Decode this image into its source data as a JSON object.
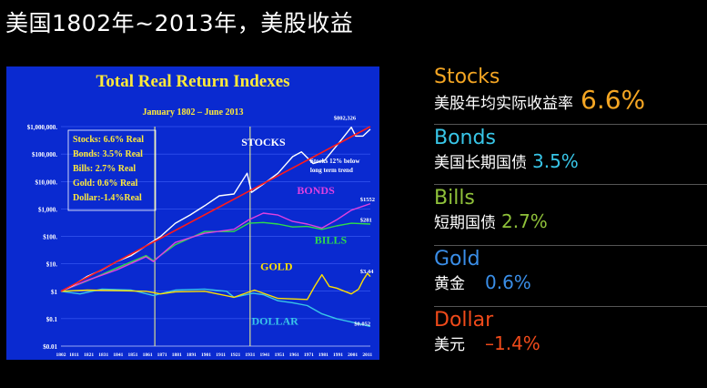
{
  "page": {
    "heading": "美国1802年~2013年，美股收益"
  },
  "legend": [
    {
      "name": "Stocks",
      "desc": "美股年均实际收益率",
      "value": "6.6%",
      "color": "#f5a623"
    },
    {
      "name": "Bonds",
      "desc": "美国长期国债",
      "value": "3.5%",
      "color": "#38c6e8"
    },
    {
      "name": "Bills",
      "desc": "短期国债",
      "value": "2.7%",
      "color": "#8fc13a"
    },
    {
      "name": "Gold",
      "desc": "黄金",
      "value": "0.6%",
      "color": "#3a8ee8"
    },
    {
      "name": "Dollar",
      "desc": "美元",
      "value": "–1.4%",
      "color": "#f04a1a"
    }
  ],
  "chart_data": {
    "type": "line",
    "title": "Total Real Return Indexes",
    "subtitle": "January 1802 – June 2013",
    "yscale": "log",
    "ylim": [
      0.01,
      1000000
    ],
    "ytick_labels": [
      "$1,000,000.",
      "$100,000.",
      "$10,000.",
      "$1,000.",
      "$100.",
      "$10.",
      "$1",
      "$0.1",
      "$0.01"
    ],
    "xtick_labels": [
      "1802",
      "1811",
      "1821",
      "1831",
      "1841",
      "1851",
      "1861",
      "1871",
      "1881",
      "1891",
      "1901",
      "1911",
      "1921",
      "1931",
      "1941",
      "1951",
      "1961",
      "1971",
      "1981",
      "1991",
      "2001",
      "2011"
    ],
    "stats_box": [
      "Stocks: 6.6% Real",
      "Bonds: 3.5% Real",
      "Bills:   2.7% Real",
      "Gold:   0.6% Real",
      "Dollar:-1.4%Real"
    ],
    "trend_note": [
      "Stocks 12% below",
      "long term trend"
    ],
    "series": [
      {
        "name": "STOCKS",
        "color": "#ffffff",
        "end_label": "$802,326",
        "x": [
          1802,
          1810,
          1820,
          1830,
          1840,
          1850,
          1860,
          1870,
          1880,
          1890,
          1900,
          1910,
          1920,
          1929,
          1932,
          1940,
          1950,
          1960,
          1966,
          1974,
          1982,
          1990,
          2000,
          2003,
          2008,
          2013
        ],
        "y": [
          1,
          1.6,
          3.5,
          6,
          12,
          20,
          45,
          100,
          300,
          600,
          1300,
          3000,
          3500,
          20000,
          4000,
          8000,
          20000,
          80000,
          120000,
          45000,
          60000,
          200000,
          950000,
          450000,
          450000,
          802326
        ]
      },
      {
        "name": "BONDS",
        "color": "#e040e0",
        "end_label": "$1552",
        "x": [
          1802,
          1820,
          1840,
          1860,
          1865,
          1880,
          1900,
          1920,
          1930,
          1940,
          1950,
          1960,
          1970,
          1980,
          1990,
          2000,
          2013
        ],
        "y": [
          1,
          2.5,
          6,
          18,
          12,
          60,
          130,
          180,
          400,
          700,
          600,
          350,
          280,
          200,
          400,
          900,
          1552
        ]
      },
      {
        "name": "BILLS",
        "color": "#2edc4a",
        "end_label": "$281",
        "x": [
          1802,
          1820,
          1840,
          1860,
          1865,
          1880,
          1900,
          1920,
          1930,
          1940,
          1950,
          1960,
          1970,
          1980,
          1990,
          2000,
          2013
        ],
        "y": [
          1,
          2.4,
          7,
          20,
          13,
          50,
          150,
          150,
          300,
          320,
          280,
          220,
          230,
          180,
          240,
          300,
          281
        ]
      },
      {
        "name": "GOLD",
        "color": "#ffe000",
        "end_label": "$3.44",
        "x": [
          1802,
          1820,
          1840,
          1860,
          1870,
          1880,
          1900,
          1920,
          1934,
          1950,
          1970,
          1975,
          1980,
          1985,
          1990,
          2000,
          2005,
          2008,
          2011,
          2013
        ],
        "y": [
          1,
          1.1,
          1.05,
          1,
          0.8,
          0.95,
          1,
          0.6,
          1.1,
          0.55,
          0.5,
          1.5,
          4,
          1.5,
          1.3,
          0.8,
          1.2,
          2.5,
          4.5,
          3.44
        ]
      },
      {
        "name": "DOLLAR",
        "color": "#38c6e8",
        "end_label": "$0.052",
        "x": [
          1802,
          1815,
          1830,
          1850,
          1865,
          1880,
          1900,
          1915,
          1920,
          1933,
          1940,
          1950,
          1960,
          1970,
          1980,
          1990,
          2000,
          2013
        ],
        "y": [
          1,
          0.8,
          1.2,
          1.1,
          0.7,
          1.1,
          1.2,
          1.0,
          0.6,
          0.85,
          0.75,
          0.45,
          0.38,
          0.3,
          0.15,
          0.1,
          0.075,
          0.052
        ]
      },
      {
        "name": "trend",
        "color": "#ff1a1a",
        "x": [
          1802,
          2013
        ],
        "y": [
          1,
          1000000
        ]
      }
    ]
  }
}
